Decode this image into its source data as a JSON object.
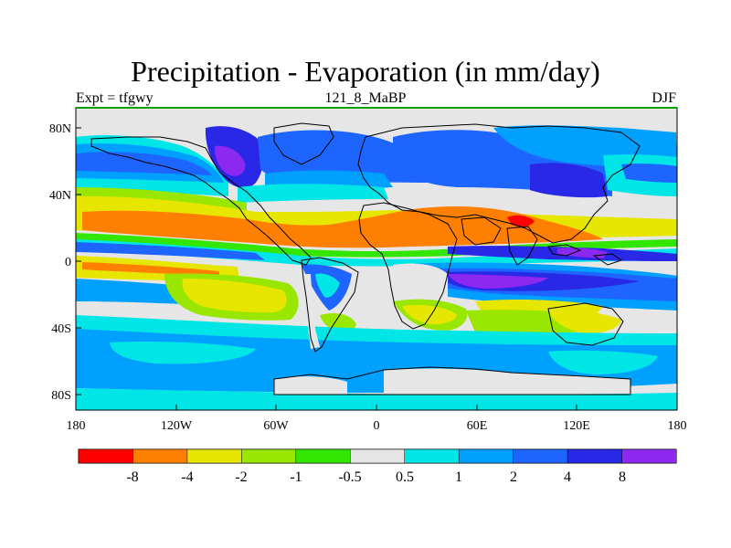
{
  "title": "Precipitation - Evaporation (in mm/day)",
  "subtitle_left": "Expt = tfgwy",
  "subtitle_center": "121_8_MaBP",
  "subtitle_right": "DJF",
  "axes": {
    "x_ticks": [
      "180",
      "120W",
      "60W",
      "0",
      "60E",
      "120E",
      "180"
    ],
    "y_ticks": [
      "80N",
      "40N",
      "0",
      "40S",
      "80S"
    ]
  },
  "colors": {
    "red": "#ff0000",
    "orange": "#ff8000",
    "yellow": "#e6e600",
    "yellowgreen": "#99e600",
    "green": "#33e600",
    "lightgray": "#e6e6e6",
    "cyan": "#00e6e6",
    "skyblue": "#00a0ff",
    "blue": "#1e64ff",
    "darkblue": "#2828e6",
    "violet": "#8c28f0",
    "frame": "#000000",
    "topline": "#00a000"
  },
  "colorbar": {
    "colors": [
      "#ff0000",
      "#ff8000",
      "#e6e600",
      "#99e600",
      "#33e600",
      "#e6e6e6",
      "#00e6e6",
      "#00a0ff",
      "#1e64ff",
      "#2828e6",
      "#8c28f0"
    ],
    "labels": [
      "-8",
      "-4",
      "-2",
      "-1",
      "-0.5",
      "0.5",
      "1",
      "2",
      "4",
      "8"
    ]
  }
}
